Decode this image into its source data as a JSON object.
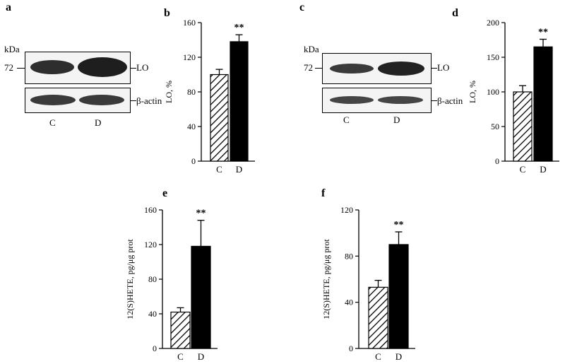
{
  "panel_letters": {
    "a": "a",
    "b": "b",
    "c": "c",
    "d": "d",
    "e": "e",
    "f": "f"
  },
  "blot_a": {
    "unit": "kDa",
    "marker": "72",
    "band_top": "LO",
    "band_bottom": "β-actin",
    "lane_c": "C",
    "lane_d": "D"
  },
  "blot_c": {
    "unit": "kDa",
    "marker": "72",
    "band_top": "LO",
    "band_bottom": "β-actin",
    "lane_c": "C",
    "lane_d": "D"
  },
  "colors": {
    "bar_d": "#000000",
    "bar_c_hatch": "#000000",
    "blot_band": "#2a2a2a"
  },
  "chart_data": [
    {
      "id": "b",
      "type": "bar",
      "ylabel": "LO, %",
      "ylim": [
        0,
        160
      ],
      "yticks": [
        0,
        40,
        80,
        120,
        160
      ],
      "categories": [
        "C",
        "D"
      ],
      "values": [
        100,
        138
      ],
      "errors": [
        6,
        8
      ],
      "patterns": [
        "hatch",
        "solid"
      ],
      "annotation": "**"
    },
    {
      "id": "d",
      "type": "bar",
      "ylabel": "LO, %",
      "ylim": [
        0,
        200
      ],
      "yticks": [
        0,
        50,
        100,
        150,
        200
      ],
      "categories": [
        "C",
        "D"
      ],
      "values": [
        100,
        165
      ],
      "errors": [
        9,
        11
      ],
      "patterns": [
        "hatch",
        "solid"
      ],
      "annotation": "**"
    },
    {
      "id": "e",
      "type": "bar",
      "ylabel": "12(S)HETE, pg/μg prot",
      "ylim": [
        0,
        160
      ],
      "yticks": [
        0,
        40,
        80,
        120,
        160
      ],
      "categories": [
        "C",
        "D"
      ],
      "values": [
        42,
        118
      ],
      "errors": [
        5,
        30
      ],
      "patterns": [
        "hatch",
        "solid"
      ],
      "annotation": "**"
    },
    {
      "id": "f",
      "type": "bar",
      "ylabel": "12(S)HETE, pg/μg prot",
      "ylim": [
        0,
        120
      ],
      "yticks": [
        0,
        40,
        80,
        120
      ],
      "categories": [
        "C",
        "D"
      ],
      "values": [
        53,
        90
      ],
      "errors": [
        6,
        11
      ],
      "patterns": [
        "hatch",
        "solid"
      ],
      "annotation": "**"
    }
  ]
}
